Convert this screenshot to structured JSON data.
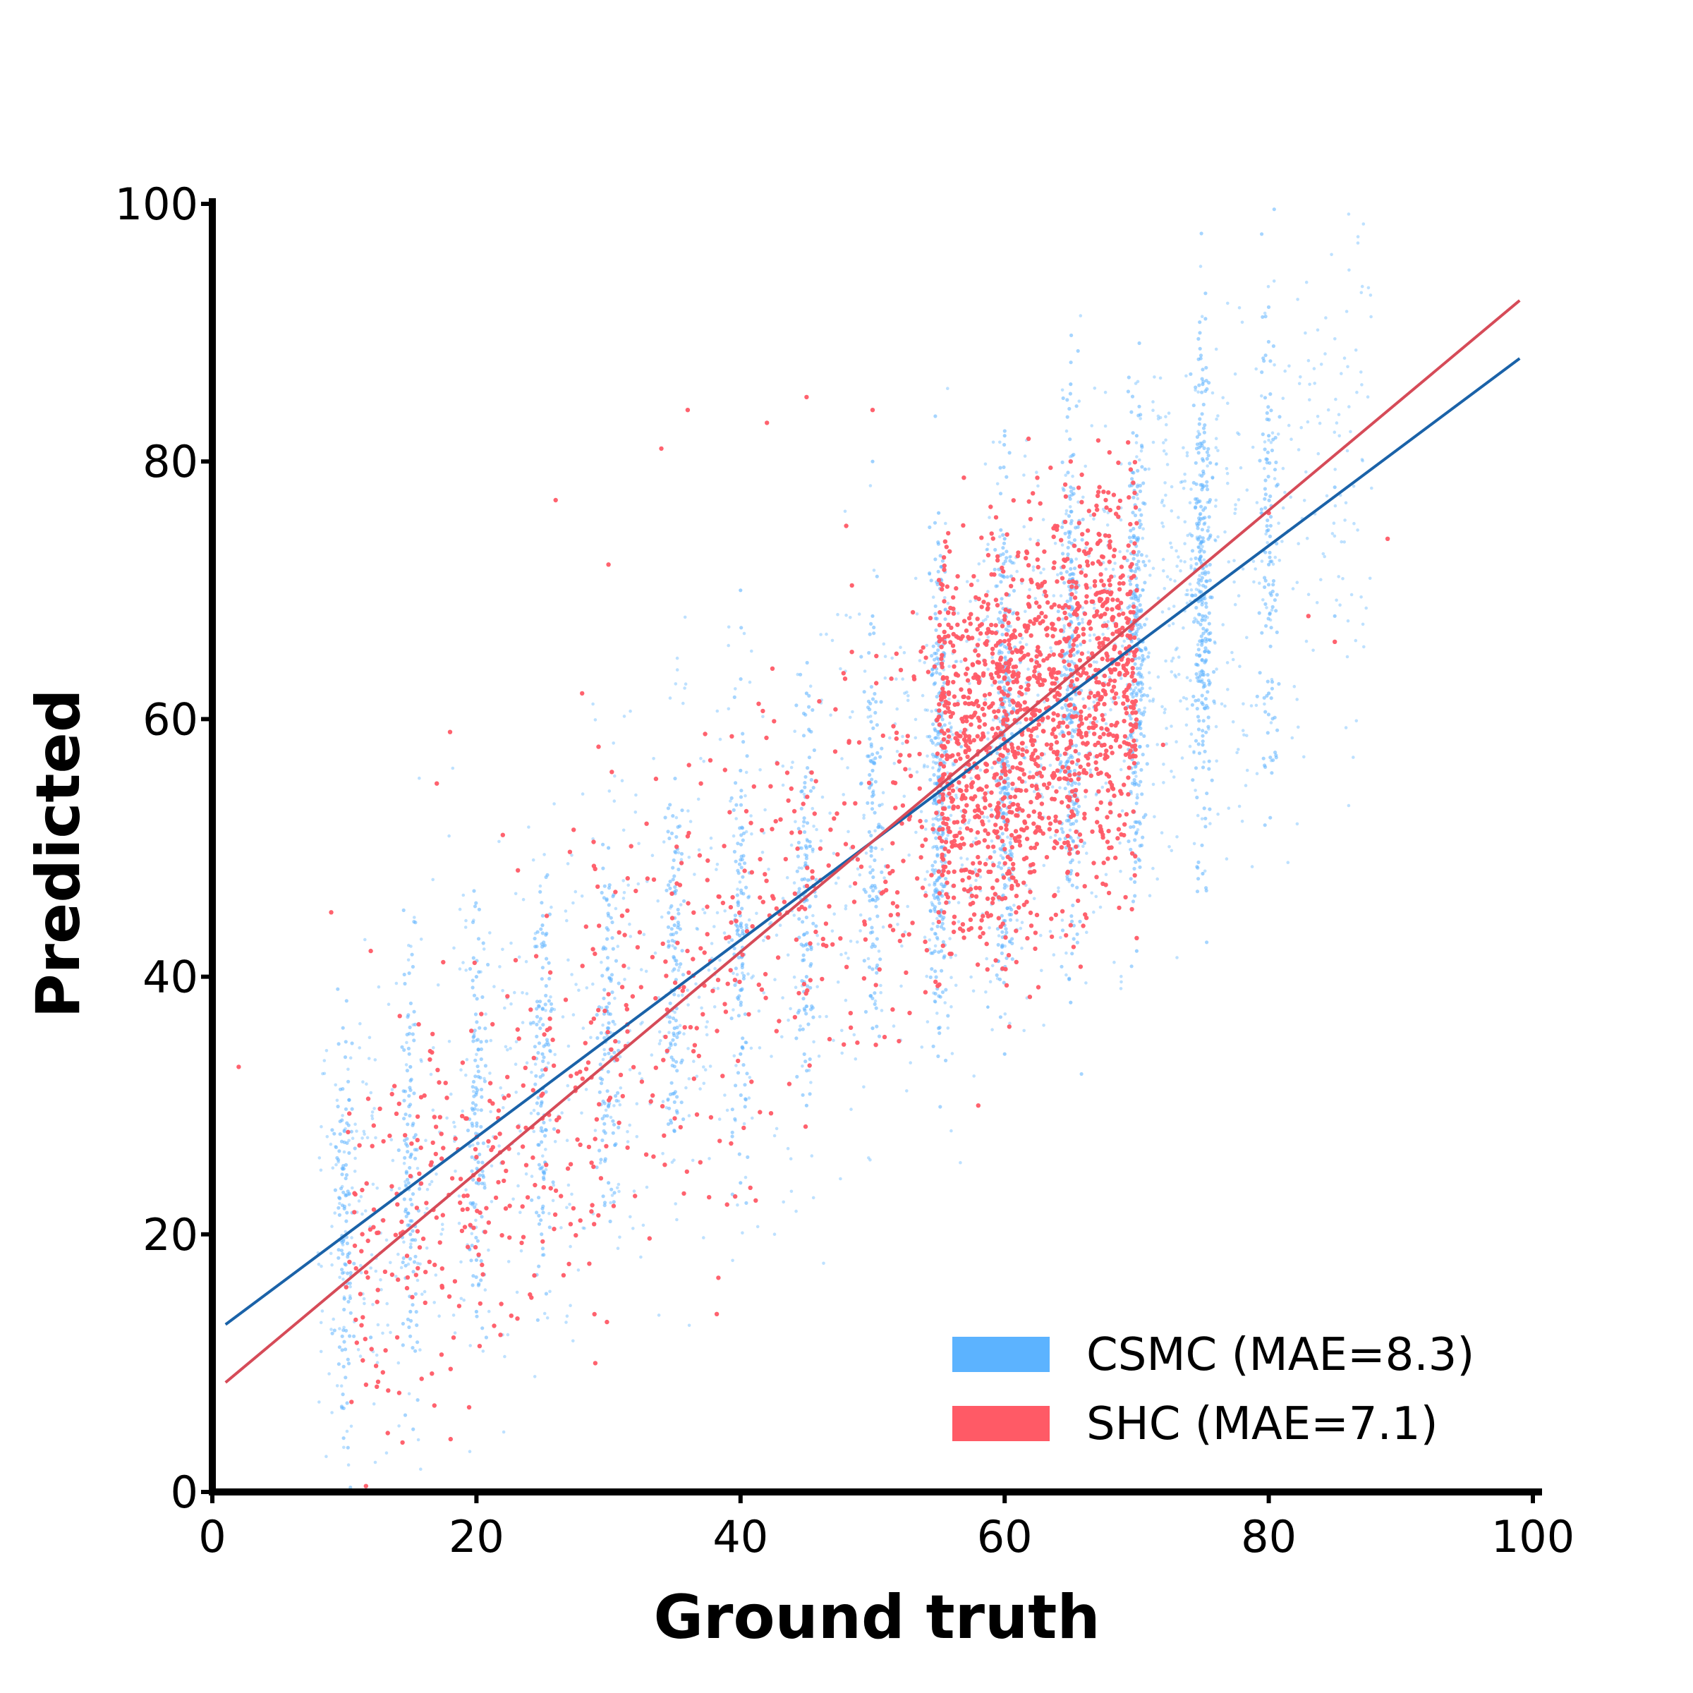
{
  "chart_data": {
    "type": "scatter",
    "title": "",
    "xlabel": "Ground truth",
    "ylabel": "Predicted",
    "xlim": [
      0,
      100
    ],
    "ylim": [
      0,
      100
    ],
    "xticks": [
      "0",
      "20",
      "40",
      "60",
      "80",
      "100"
    ],
    "yticks": [
      "0",
      "20",
      "40",
      "60",
      "80",
      "100"
    ],
    "grid": false,
    "legend_position": "bottom-right",
    "series": [
      {
        "name": "CSMC (MAE=8.3)",
        "color": "#5cb3ff",
        "fit_color": "#1a62a8",
        "fit_line": [
          [
            1,
            13
          ],
          [
            99,
            88
          ]
        ],
        "x_clusters": [
          10,
          15,
          20,
          25,
          30,
          35,
          40,
          45,
          50,
          55,
          60,
          65,
          70,
          75,
          80
        ],
        "points": [
          [
            10,
            15
          ],
          [
            10,
            22
          ],
          [
            10,
            28
          ],
          [
            12,
            12
          ],
          [
            15,
            14
          ],
          [
            15,
            20
          ],
          [
            15,
            26
          ],
          [
            15,
            33
          ],
          [
            20,
            14
          ],
          [
            20,
            18
          ],
          [
            20,
            24
          ],
          [
            20,
            31
          ],
          [
            20,
            40
          ],
          [
            25,
            22
          ],
          [
            25,
            28
          ],
          [
            25,
            34
          ],
          [
            25,
            44
          ],
          [
            30,
            24
          ],
          [
            30,
            30
          ],
          [
            30,
            36
          ],
          [
            30,
            50
          ],
          [
            35,
            28
          ],
          [
            35,
            36
          ],
          [
            35,
            44
          ],
          [
            40,
            24
          ],
          [
            40,
            34
          ],
          [
            40,
            44
          ],
          [
            40,
            56
          ],
          [
            40,
            70
          ],
          [
            45,
            30
          ],
          [
            45,
            40
          ],
          [
            45,
            50
          ],
          [
            45,
            62
          ],
          [
            50,
            36
          ],
          [
            50,
            46
          ],
          [
            50,
            56
          ],
          [
            50,
            68
          ],
          [
            50,
            80
          ],
          [
            55,
            36
          ],
          [
            55,
            46
          ],
          [
            55,
            56
          ],
          [
            55,
            66
          ],
          [
            55,
            76
          ],
          [
            60,
            34
          ],
          [
            60,
            44
          ],
          [
            60,
            54
          ],
          [
            60,
            64
          ],
          [
            60,
            74
          ],
          [
            60,
            82
          ],
          [
            65,
            38
          ],
          [
            65,
            48
          ],
          [
            65,
            58
          ],
          [
            65,
            68
          ],
          [
            65,
            78
          ],
          [
            65,
            86
          ],
          [
            70,
            42
          ],
          [
            70,
            52
          ],
          [
            70,
            62
          ],
          [
            70,
            72
          ],
          [
            70,
            82
          ],
          [
            75,
            48
          ],
          [
            75,
            58
          ],
          [
            75,
            68
          ],
          [
            75,
            78
          ],
          [
            75,
            86
          ],
          [
            80,
            62
          ],
          [
            80,
            72
          ],
          [
            80,
            82
          ],
          [
            85,
            68
          ],
          [
            85,
            78
          ]
        ]
      },
      {
        "name": "SHC (MAE=7.1)",
        "color": "#ff5a66",
        "fit_color": "#d64b58",
        "fit_line": [
          [
            1,
            8.5
          ],
          [
            99,
            92.5
          ]
        ],
        "points": [
          [
            2,
            33
          ],
          [
            9,
            45
          ],
          [
            12,
            42
          ],
          [
            14,
            12
          ],
          [
            17,
            55
          ],
          [
            18,
            59
          ],
          [
            20,
            26
          ],
          [
            22,
            51
          ],
          [
            25,
            29
          ],
          [
            26,
            77
          ],
          [
            28,
            62
          ],
          [
            29,
            10
          ],
          [
            30,
            72
          ],
          [
            34,
            81
          ],
          [
            36,
            84
          ],
          [
            37,
            55
          ],
          [
            42,
            83
          ],
          [
            45,
            85
          ],
          [
            48,
            75
          ],
          [
            50,
            84
          ],
          [
            52,
            35
          ],
          [
            55,
            45
          ],
          [
            58,
            53
          ],
          [
            58,
            30
          ],
          [
            60,
            58
          ],
          [
            60,
            68
          ],
          [
            62,
            60
          ],
          [
            62,
            50
          ],
          [
            63,
            73
          ],
          [
            64,
            56
          ],
          [
            65,
            80
          ],
          [
            65,
            44
          ],
          [
            66,
            66
          ],
          [
            67,
            52
          ],
          [
            68,
            63
          ],
          [
            70,
            43
          ],
          [
            70,
            70
          ],
          [
            72,
            58
          ],
          [
            80,
            76
          ],
          [
            83,
            68
          ],
          [
            85,
            66
          ],
          [
            89,
            74
          ]
        ]
      }
    ]
  }
}
